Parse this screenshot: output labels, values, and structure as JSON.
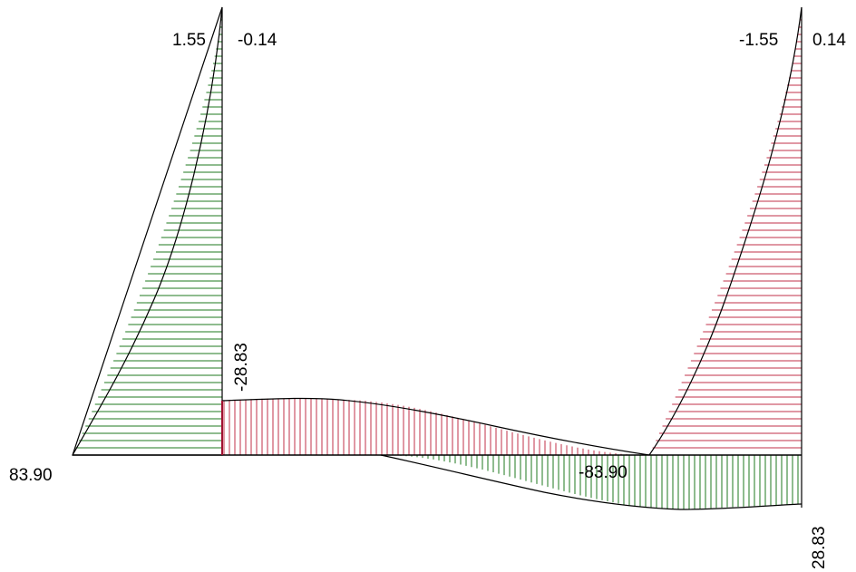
{
  "diagram": {
    "type": "bending-moment-diagram",
    "colors": {
      "positive": "#1f7a1f",
      "negative": "#c0304a",
      "outline": "#000000",
      "background": "#ffffff"
    },
    "labels": {
      "left_column_top": "1.55",
      "left_column_top_inner": "-0.14",
      "left_base": "83.90",
      "beam_left_end": "-28.83",
      "beam_right_end": "-83.90",
      "right_column_top_inner": "-1.55",
      "right_column_top": "0.14",
      "right_base": "28.83"
    }
  }
}
